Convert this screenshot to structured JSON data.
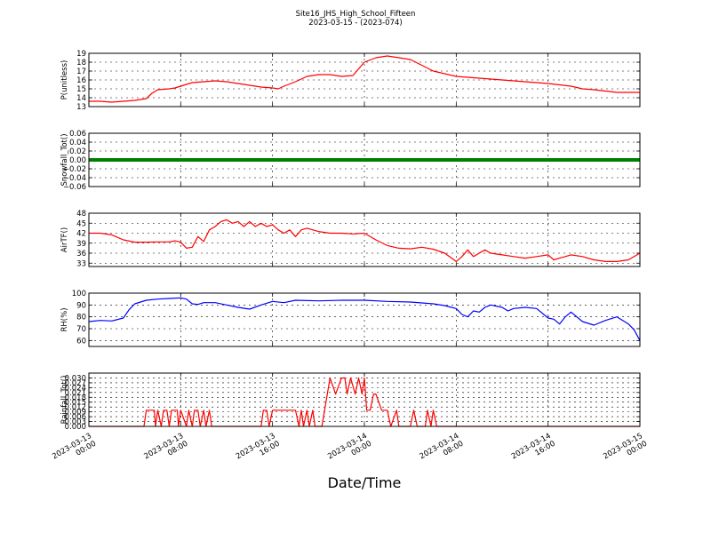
{
  "title": "Site16_JHS_High_School_Fifteen",
  "subtitle": "2023-03-15 - (2023-074)",
  "xlabel": "Date/Time",
  "x_ticks": [
    [
      "2023-03-13",
      "00:00"
    ],
    [
      "2023-03-13",
      "08:00"
    ],
    [
      "2023-03-13",
      "16:00"
    ],
    [
      "2023-03-14",
      "00:00"
    ],
    [
      "2023-03-14",
      "08:00"
    ],
    [
      "2023-03-14",
      "16:00"
    ],
    [
      "2023-03-15",
      "00:00"
    ]
  ],
  "chart_data": [
    {
      "type": "line",
      "ylabel": "P(unitless)",
      "color": "#ff0000",
      "xlim_hours": [
        0,
        48
      ],
      "ylim": [
        13,
        19
      ],
      "y_ticks": [
        "13",
        "14",
        "15",
        "16",
        "17",
        "18",
        "19"
      ],
      "grid": true,
      "x": [
        0,
        1,
        2,
        3,
        4,
        5,
        5.5,
        6,
        7,
        7.5,
        8,
        9,
        10,
        11,
        12,
        13,
        14,
        15,
        16,
        16.5,
        17,
        18,
        19,
        20,
        20.5,
        21,
        22,
        23,
        24,
        25,
        26,
        27,
        28,
        30,
        32,
        34,
        36,
        38,
        40,
        42,
        43,
        44,
        46,
        48
      ],
      "y": [
        13.6,
        13.6,
        13.5,
        13.6,
        13.7,
        13.9,
        14.5,
        14.9,
        15.0,
        15.1,
        15.3,
        15.7,
        15.8,
        15.9,
        15.8,
        15.6,
        15.4,
        15.2,
        15.1,
        15.0,
        15.3,
        15.8,
        16.4,
        16.6,
        16.6,
        16.6,
        16.4,
        16.5,
        18.0,
        18.5,
        18.7,
        18.5,
        18.3,
        17.0,
        16.4,
        16.2,
        16.0,
        15.8,
        15.6,
        15.3,
        15.0,
        14.9,
        14.6,
        14.6
      ]
    },
    {
      "type": "line",
      "ylabel": "Snowfall_Tot()",
      "color": "#008000",
      "xlim_hours": [
        0,
        48
      ],
      "ylim": [
        -0.06,
        0.06
      ],
      "y_ticks": [
        "−0.06",
        "−0.04",
        "−0.02",
        "0.00",
        "0.02",
        "0.04",
        "0.06"
      ],
      "grid": true,
      "x": [
        0,
        48
      ],
      "y": [
        0.0,
        0.0
      ]
    },
    {
      "type": "line",
      "ylabel": "AirTF()",
      "color": "#ff0000",
      "xlim_hours": [
        0,
        48
      ],
      "ylim": [
        32,
        48
      ],
      "y_ticks": [
        "33",
        "36",
        "39",
        "42",
        "45",
        "48"
      ],
      "grid": true,
      "x": [
        0,
        1,
        2,
        3,
        4,
        5,
        6,
        7,
        7.5,
        8,
        8.5,
        9,
        9.5,
        10,
        10.5,
        11,
        11.5,
        12,
        12.5,
        13,
        13.5,
        14,
        14.5,
        15,
        15.5,
        16,
        16.5,
        17,
        17.5,
        18,
        18.5,
        19,
        20,
        21,
        22,
        23,
        24,
        25,
        26,
        27,
        28,
        29,
        30,
        31,
        32,
        32.5,
        33,
        33.5,
        34,
        34.5,
        35,
        36,
        37,
        38,
        39,
        40,
        40.5,
        41,
        41.5,
        42,
        43,
        44,
        45,
        46,
        47,
        48
      ],
      "y": [
        42,
        42,
        41.5,
        40,
        39.3,
        39.3,
        39.4,
        39.4,
        39.7,
        39.3,
        37.5,
        37.8,
        41,
        39.5,
        43,
        44,
        45.5,
        46,
        45,
        45.5,
        44,
        45.5,
        44,
        45,
        44,
        44.5,
        43,
        42,
        43,
        41,
        43,
        43.5,
        42.5,
        42,
        42,
        41.8,
        42,
        40,
        38.3,
        37.5,
        37.3,
        37.8,
        37.2,
        36,
        33.5,
        35,
        37,
        35,
        36,
        37,
        36,
        35.5,
        35,
        34.5,
        35,
        35.5,
        34,
        34.5,
        35,
        35.5,
        35,
        34,
        33.5,
        33.5,
        34,
        36
      ]
    },
    {
      "type": "line",
      "ylabel": "RH(%)",
      "color": "#0000ff",
      "xlim_hours": [
        0,
        48
      ],
      "ylim": [
        55,
        100
      ],
      "y_ticks": [
        "60",
        "70",
        "80",
        "90",
        "100"
      ],
      "grid": true,
      "x": [
        0,
        1,
        2,
        3,
        3.5,
        4,
        5,
        6,
        7,
        8,
        8.5,
        9,
        9.5,
        10,
        11,
        12,
        13,
        14,
        15,
        16,
        17,
        18,
        20,
        22,
        24,
        26,
        28,
        30,
        31,
        32,
        32.5,
        33,
        33.5,
        34,
        34.5,
        35,
        36,
        36.5,
        37,
        38,
        39,
        40,
        40.5,
        41,
        41.5,
        42,
        43,
        44,
        45,
        46,
        47,
        47.5,
        48
      ],
      "y": [
        76,
        77,
        76.5,
        79,
        86,
        91,
        94,
        95,
        95.5,
        96,
        95,
        91,
        90.5,
        92,
        92,
        90,
        88,
        86.5,
        90,
        93,
        92,
        94,
        93.5,
        94,
        94,
        93,
        92.5,
        91,
        89.5,
        87,
        82,
        80,
        85,
        84,
        88,
        90,
        88,
        85,
        87,
        88,
        87,
        79,
        78,
        74,
        80,
        84,
        76,
        73,
        77,
        80,
        74,
        69,
        60
      ]
    },
    {
      "type": "line",
      "ylabel": "Rainfall_Tot()",
      "color": "#ff0000",
      "xlim_hours": [
        0,
        48
      ],
      "ylim": [
        0.0,
        0.033
      ],
      "y_ticks": [
        "0.000",
        "0.003",
        "0.006",
        "0.009",
        "0.012",
        "0.015",
        "0.018",
        "0.021",
        "0.024",
        "0.027",
        "0.030"
      ],
      "grid": true,
      "x": [
        0,
        4.8,
        5,
        5.7,
        5.8,
        6,
        6.3,
        6.5,
        6.8,
        7,
        7.2,
        7.7,
        7.8,
        8,
        8.5,
        8.7,
        9,
        9.2,
        9.5,
        9.7,
        10,
        10.2,
        10.5,
        10.7,
        15,
        15.2,
        15.5,
        15.7,
        16,
        16.3,
        18,
        18.3,
        18.5,
        18.7,
        19,
        19.2,
        19.5,
        19.7,
        20,
        20.3,
        21,
        21.5,
        22,
        22.3,
        22.5,
        22.8,
        23.2,
        23.5,
        23.8,
        24,
        24.2,
        24.5,
        24.8,
        25,
        25.5,
        26,
        26.3,
        26.8,
        27,
        27.3,
        27.5,
        28,
        28.3,
        28.6,
        28.8,
        29.3,
        29.5,
        29.8,
        30,
        30.3,
        30.5,
        30.7,
        31,
        31.3,
        31.7,
        32,
        32.3,
        48
      ],
      "y": [
        0,
        0,
        0.01,
        0.01,
        0,
        0.01,
        0,
        0.01,
        0.01,
        0,
        0.01,
        0.01,
        0,
        0.01,
        0,
        0.01,
        0,
        0.01,
        0.01,
        0,
        0.01,
        0,
        0.01,
        0,
        0,
        0.01,
        0.01,
        0,
        0.01,
        0.01,
        0.01,
        0,
        0.01,
        0,
        0.01,
        0,
        0.01,
        0,
        0,
        0,
        0.03,
        0.02,
        0.03,
        0.03,
        0.02,
        0.03,
        0.02,
        0.03,
        0.02,
        0.03,
        0.01,
        0.01,
        0.02,
        0.02,
        0.01,
        0.01,
        0,
        0.01,
        0,
        0,
        0,
        0,
        0.01,
        0,
        0,
        0,
        0.01,
        0,
        0.01,
        0,
        0,
        0,
        0,
        0,
        0,
        0,
        0,
        0
      ]
    }
  ]
}
